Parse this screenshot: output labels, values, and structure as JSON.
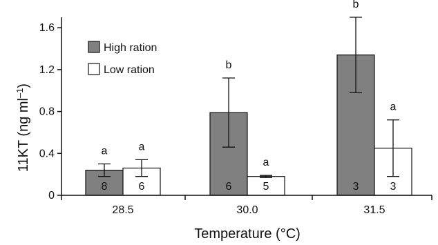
{
  "chart_data": {
    "type": "bar",
    "xlabel": "Temperature (°C)",
    "ylabel_main": "11KT (ng ml",
    "ylabel_sup": "–1",
    "ylabel_close": ")",
    "ylim": [
      0,
      1.7
    ],
    "y_ticks": [
      "0",
      "0.4",
      "0.8",
      "1.2",
      "1.6"
    ],
    "y_tick_values": [
      0,
      0.4,
      0.8,
      1.2,
      1.6
    ],
    "categories": [
      "28.5",
      "30.0",
      "31.5"
    ],
    "series": [
      {
        "name": "High ration",
        "color": "#808080",
        "values": [
          0.24,
          0.79,
          1.34
        ],
        "errors": [
          0.06,
          0.33,
          0.36
        ],
        "letters": [
          "a",
          "b",
          "b"
        ],
        "n": [
          "8",
          "6",
          "3"
        ]
      },
      {
        "name": "Low ration",
        "color": "#ffffff",
        "values": [
          0.26,
          0.18,
          0.45
        ],
        "errors": [
          0.08,
          0.01,
          0.27
        ],
        "letters": [
          "a",
          "a",
          "a"
        ],
        "n": [
          "6",
          "5",
          "3"
        ]
      }
    ],
    "legend_position": "top-left",
    "grid": false
  }
}
